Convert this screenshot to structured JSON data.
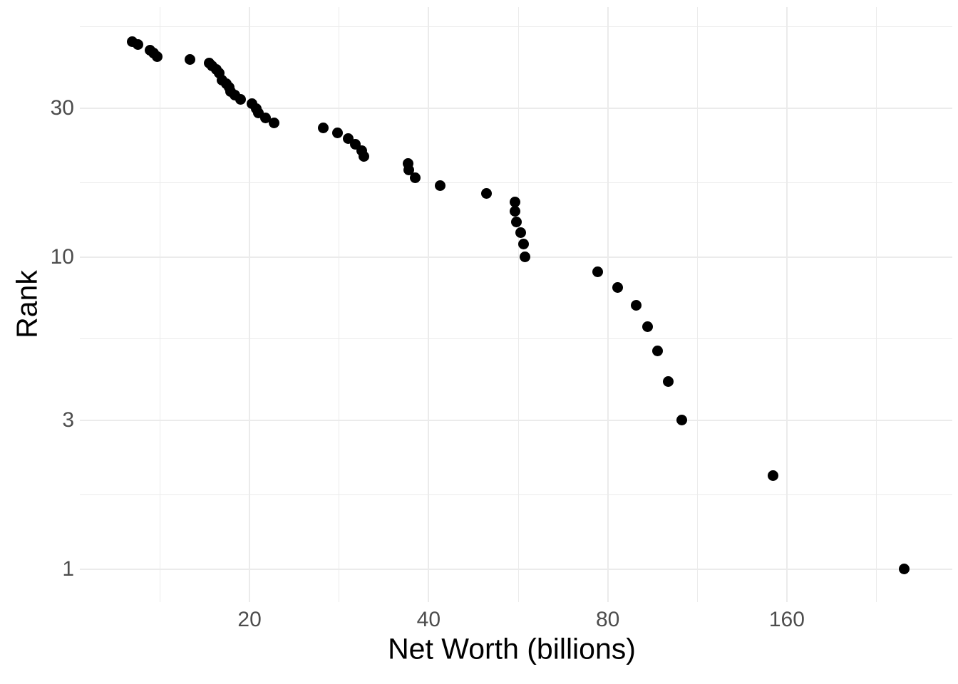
{
  "chart_data": {
    "type": "scatter",
    "title": "",
    "xlabel": "Net Worth (billions)",
    "ylabel": "Rank",
    "x_scale": "log2",
    "y_scale": "log10",
    "grid": true,
    "legend": false,
    "point_color": "#000000",
    "grid_color": "#ebebeb",
    "tick_label_color": "#4d4d4d",
    "axis_title_color": "#000000",
    "x_ticks": [
      20,
      40,
      80,
      160
    ],
    "x_tick_labels": [
      "20",
      "40",
      "80",
      "160"
    ],
    "x_minor_ticks": [
      14.14,
      28.28,
      56.57,
      113.14,
      226.27
    ],
    "y_ticks": [
      1,
      3,
      10,
      30
    ],
    "y_tick_labels": [
      "1",
      "3",
      "10",
      "30"
    ],
    "y_minor_ticks": [
      1.732,
      5.477,
      17.32,
      54.77
    ],
    "x_domain": [
      10.37,
      303.5
    ],
    "y_domain": [
      0.785,
      63.3
    ],
    "points": [
      {
        "rank": 1,
        "net_worth": 251.6
      },
      {
        "rank": 2,
        "net_worth": 151.5
      },
      {
        "rank": 3,
        "net_worth": 106.4
      },
      {
        "rank": 4,
        "net_worth": 101.2
      },
      {
        "rank": 5,
        "net_worth": 97.1
      },
      {
        "rank": 6,
        "net_worth": 93.2
      },
      {
        "rank": 7,
        "net_worth": 89.4
      },
      {
        "rank": 8,
        "net_worth": 83.2
      },
      {
        "rank": 9,
        "net_worth": 77.0
      },
      {
        "rank": 10,
        "net_worth": 58.1
      },
      {
        "rank": 11,
        "net_worth": 57.7
      },
      {
        "rank": 12,
        "net_worth": 57.1
      },
      {
        "rank": 13,
        "net_worth": 56.2
      },
      {
        "rank": 14,
        "net_worth": 55.9
      },
      {
        "rank": 15,
        "net_worth": 55.8
      },
      {
        "rank": 16,
        "net_worth": 50.1
      },
      {
        "rank": 17,
        "net_worth": 41.8
      },
      {
        "rank": 18,
        "net_worth": 38.0
      },
      {
        "rank": 19,
        "net_worth": 37.0
      },
      {
        "rank": 20,
        "net_worth": 36.9
      },
      {
        "rank": 21,
        "net_worth": 31.1
      },
      {
        "rank": 22,
        "net_worth": 30.9
      },
      {
        "rank": 23,
        "net_worth": 30.1
      },
      {
        "rank": 24,
        "net_worth": 29.3
      },
      {
        "rank": 25,
        "net_worth": 28.1
      },
      {
        "rank": 26,
        "net_worth": 26.6
      },
      {
        "rank": 27,
        "net_worth": 22.0
      },
      {
        "rank": 28,
        "net_worth": 21.3
      },
      {
        "rank": 29,
        "net_worth": 20.7
      },
      {
        "rank": 30,
        "net_worth": 20.5
      },
      {
        "rank": 31,
        "net_worth": 20.2
      },
      {
        "rank": 32,
        "net_worth": 19.3
      },
      {
        "rank": 33,
        "net_worth": 18.9
      },
      {
        "rank": 34,
        "net_worth": 18.6
      },
      {
        "rank": 35,
        "net_worth": 18.5
      },
      {
        "rank": 36,
        "net_worth": 18.3
      },
      {
        "rank": 37,
        "net_worth": 18.0
      },
      {
        "rank": 39,
        "net_worth": 17.8
      },
      {
        "rank": 40,
        "net_worth": 17.6
      },
      {
        "rank": 41,
        "net_worth": 17.3
      },
      {
        "rank": 42,
        "net_worth": 17.1
      },
      {
        "rank": 43,
        "net_worth": 15.9
      },
      {
        "rank": 44,
        "net_worth": 14.0
      },
      {
        "rank": 45,
        "net_worth": 13.8
      },
      {
        "rank": 46,
        "net_worth": 13.6
      },
      {
        "rank": 48,
        "net_worth": 13.0
      },
      {
        "rank": 49,
        "net_worth": 12.7
      }
    ]
  }
}
